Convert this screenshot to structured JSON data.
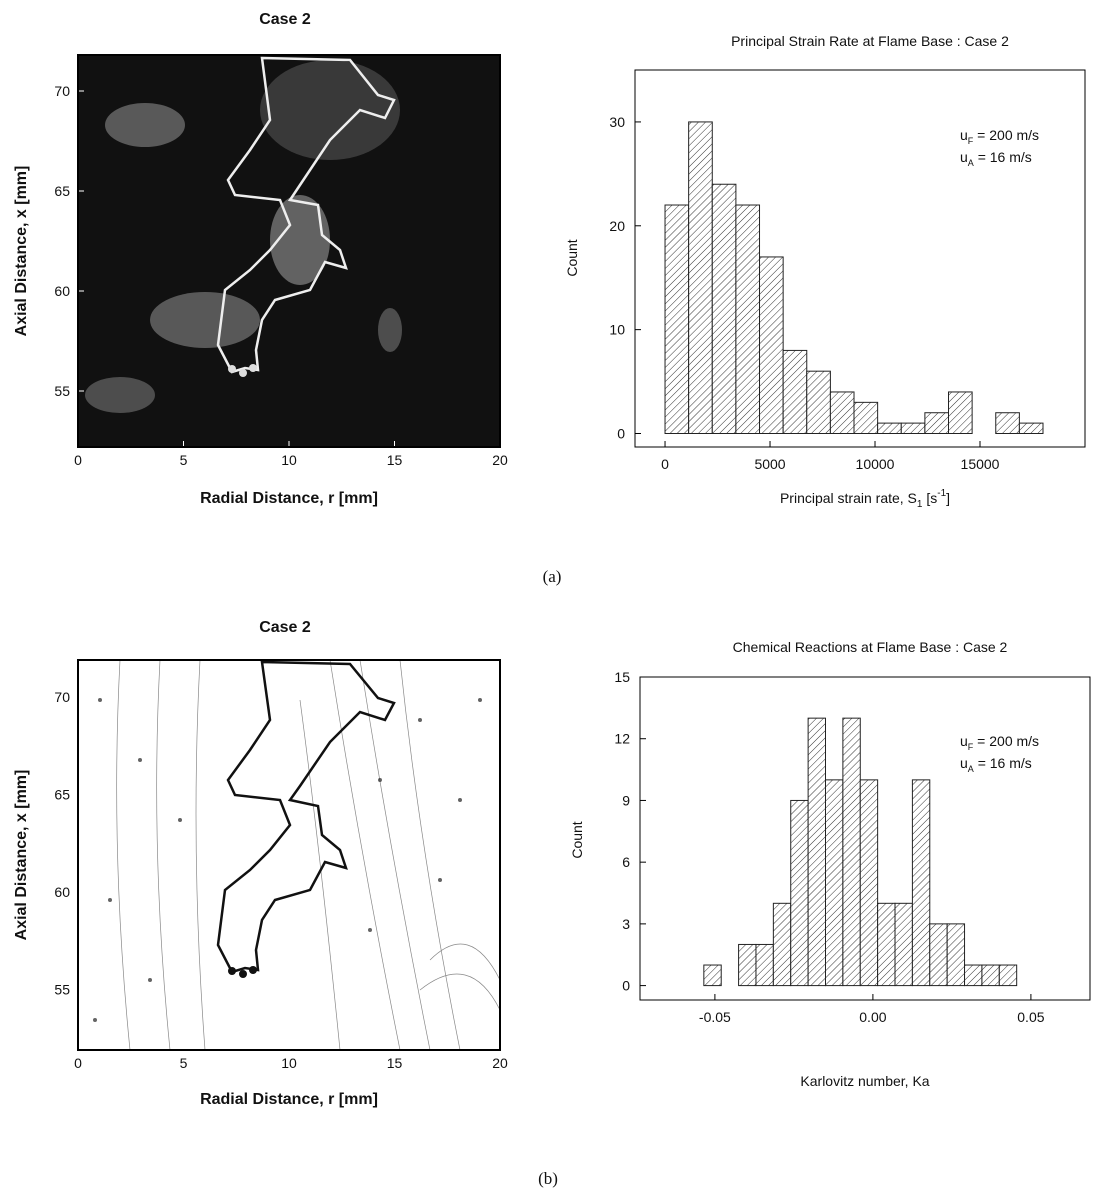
{
  "chart_data": [
    {
      "type": "image",
      "title": "Case 2",
      "x_label": "Radial Distance,  r  [mm]",
      "y_label": "Axial Distance,  x  [mm]",
      "xlim": [
        0,
        20
      ],
      "xticks": [
        0,
        5,
        10,
        15,
        20
      ],
      "ylim": [
        52.2,
        71.8
      ],
      "yticks": [
        55,
        60,
        65,
        70
      ],
      "background": "#111111"
    },
    {
      "type": "histogram",
      "title": "Principal Strain Rate at Flame Base  : Case 2",
      "y_label": "Count",
      "x_label": [
        "Principal strain rate,  S",
        "1",
        "  [s",
        "-1",
        "]"
      ],
      "annotations": [
        [
          "u",
          "F",
          " = 200 m/s"
        ],
        [
          "u",
          "A",
          " = 16 m/s"
        ]
      ],
      "bins": [
        0,
        1125,
        2250,
        3375,
        4500,
        5625,
        6750,
        7875,
        9000,
        10125,
        11250,
        12375,
        13500,
        14625,
        15750,
        16875,
        18000
      ],
      "values": [
        22,
        30,
        24,
        22,
        17,
        8,
        6,
        4,
        3,
        1,
        1,
        2,
        4,
        0,
        2,
        1
      ],
      "xlim": [
        -1430,
        20000
      ],
      "xticks": [
        0,
        5000,
        10000,
        15000
      ],
      "ylim": [
        -1.3,
        35
      ],
      "yticks": [
        0,
        10,
        20,
        30
      ]
    },
    {
      "type": "image",
      "title": "Case 2",
      "x_label": "Radial Distance,  r  [mm]",
      "y_label": "Axial Distance,  x  [mm]",
      "xlim": [
        0,
        20
      ],
      "xticks": [
        0,
        5,
        10,
        15,
        20
      ],
      "ylim": [
        51.9,
        71.9
      ],
      "yticks": [
        55,
        60,
        65,
        70
      ],
      "background": "#ffffff"
    },
    {
      "type": "histogram",
      "title": "Chemical Reactions at Flame Base  : Case 2",
      "y_label": "Count",
      "x_label": [
        "Karlovitz number,  Ka"
      ],
      "annotations": [
        [
          "u",
          "F",
          " = 200 m/s"
        ],
        [
          "u",
          "A",
          " = 16 m/s"
        ]
      ],
      "bins": [
        -0.0535,
        -0.048,
        -0.0425,
        -0.037,
        -0.0315,
        -0.026,
        -0.0205,
        -0.015,
        -0.0095,
        -0.004,
        0.0015,
        0.007,
        0.0125,
        0.018,
        0.0235,
        0.029,
        0.0345,
        0.04,
        0.0455
      ],
      "values": [
        1,
        0,
        2,
        2,
        4,
        9,
        13,
        10,
        13,
        10,
        4,
        4,
        10,
        3,
        3,
        1,
        1,
        1
      ],
      "xlim": [
        -0.0737,
        0.0687
      ],
      "xticks": [
        -0.05,
        {
          "value": 0,
          "label": "0.00"
        },
        0.05
      ],
      "ylim": [
        -0.7,
        15
      ],
      "yticks": [
        0,
        3,
        6,
        9,
        12,
        15
      ]
    }
  ],
  "captions": [
    "(a)",
    "(b)"
  ]
}
